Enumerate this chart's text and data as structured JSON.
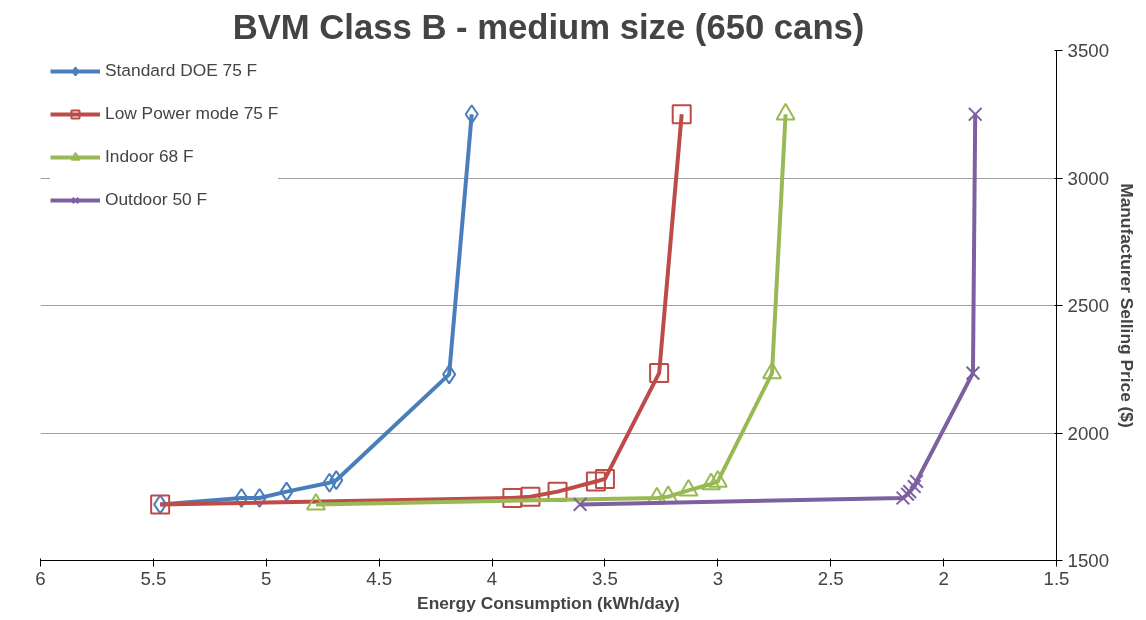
{
  "chart_data": {
    "type": "line",
    "title": "BVM Class B - medium size (650 cans)",
    "xlabel": "Energy Consumption (kWh/day)",
    "y2label": "Manufacturer Selling Price ($)",
    "xlim": [
      6,
      1.5
    ],
    "xticks": [
      6,
      5.5,
      5,
      4.5,
      4,
      3.5,
      3,
      2.5,
      2,
      1.5
    ],
    "y2lim": [
      1500,
      3500
    ],
    "y2ticks": [
      1500,
      2000,
      2500,
      3000,
      3500
    ],
    "grid": "y",
    "legend": "top left",
    "series": [
      {
        "name": "Standard DOE 75 F",
        "color": "#4a7ebb",
        "marker": "diamond",
        "axis": "y2",
        "x": [
          5.47,
          5.11,
          5.03,
          4.91,
          4.72,
          4.69,
          4.19,
          4.09
        ],
        "values": [
          1720,
          1745,
          1745,
          1770,
          1805,
          1815,
          2230,
          3250
        ]
      },
      {
        "name": "Low Power mode 75 F",
        "color": "#be4b48",
        "marker": "square",
        "axis": "y2",
        "x": [
          5.47,
          3.91,
          3.83,
          3.71,
          3.54,
          3.5,
          3.26,
          3.16
        ],
        "values": [
          1720,
          1745,
          1750,
          1770,
          1810,
          1820,
          2235,
          3250
        ]
      },
      {
        "name": "Indoor 68 F",
        "color": "#98b954",
        "marker": "triangle",
        "axis": "y2",
        "x": [
          4.78,
          3.27,
          3.22,
          3.13,
          3.03,
          3.0,
          2.76,
          2.7
        ],
        "values": [
          1720,
          1745,
          1750,
          1775,
          1800,
          1810,
          2235,
          3250
        ]
      },
      {
        "name": "Outdoor 50 F",
        "color": "#7d60a0",
        "marker": "cross",
        "axis": "y2",
        "x": [
          3.61,
          2.18,
          2.16,
          2.15,
          2.13,
          2.12,
          1.87,
          1.86
        ],
        "values": [
          1720,
          1745,
          1760,
          1770,
          1790,
          1810,
          2235,
          3250
        ]
      }
    ]
  }
}
